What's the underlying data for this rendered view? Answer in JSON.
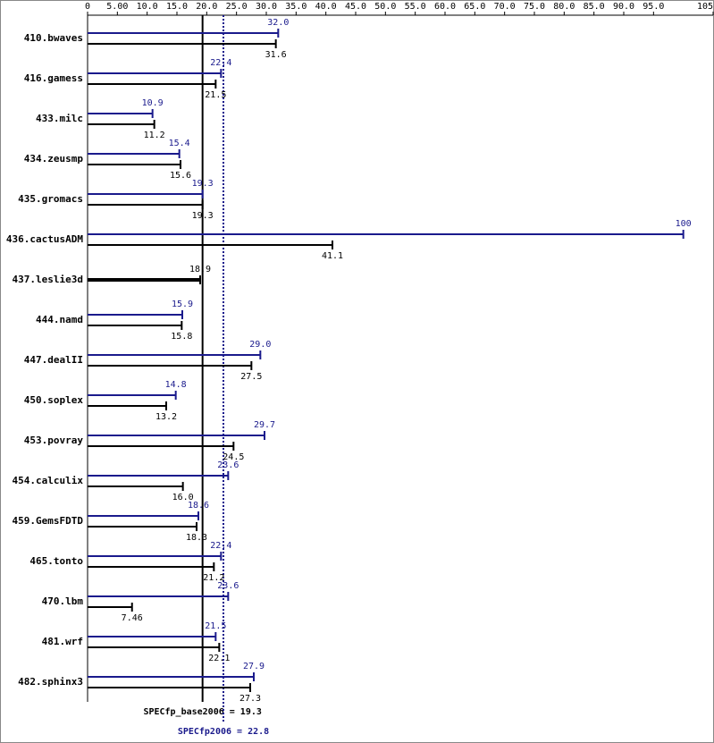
{
  "chart_data": {
    "type": "bar",
    "orientation": "horizontal",
    "categories": [
      "410.bwaves",
      "416.gamess",
      "433.milc",
      "434.zeusmp",
      "435.gromacs",
      "436.cactusADM",
      "437.leslie3d",
      "444.namd",
      "447.dealII",
      "450.soplex",
      "453.povray",
      "454.calculix",
      "459.GemsFDTD",
      "465.tonto",
      "470.lbm",
      "481.wrf",
      "482.sphinx3"
    ],
    "series": [
      {
        "color": "#1a1a8c",
        "values": [
          32.0,
          22.4,
          10.9,
          15.4,
          19.3,
          100,
          null,
          15.9,
          29.0,
          14.8,
          29.7,
          23.6,
          18.6,
          22.4,
          23.6,
          21.5,
          27.9
        ],
        "value_labels": [
          "32.0",
          "22.4",
          "10.9",
          "15.4",
          "19.3",
          "100",
          null,
          "15.9",
          "29.0",
          "14.8",
          "29.7",
          "23.6",
          "18.6",
          "22.4",
          "23.6",
          "21.5",
          "27.9"
        ]
      },
      {
        "color": "#000000",
        "values": [
          31.6,
          21.5,
          11.2,
          15.6,
          19.3,
          41.1,
          18.9,
          15.8,
          27.5,
          13.2,
          24.5,
          16.0,
          18.3,
          21.2,
          7.46,
          22.1,
          27.3
        ],
        "value_labels": [
          "31.6",
          "21.5",
          "11.2",
          "15.6",
          "19.3",
          "41.1",
          "18.9",
          "15.8",
          "27.5",
          "13.2",
          "24.5",
          "16.0",
          "18.3",
          "21.2",
          "7.46",
          "22.1",
          "27.3"
        ]
      }
    ],
    "xlim": [
      0,
      105
    ],
    "xticks": [
      0,
      {
        "value": 5,
        "label": "5.00"
      },
      {
        "value": 10,
        "label": "10.0"
      },
      {
        "value": 15,
        "label": "15.0"
      },
      {
        "value": 20,
        "label": "20.0"
      },
      {
        "value": 25,
        "label": "25.0"
      },
      {
        "value": 30,
        "label": "30.0"
      },
      {
        "value": 35,
        "label": "35.0"
      },
      {
        "value": 40,
        "label": "40.0"
      },
      {
        "value": 45,
        "label": "45.0"
      },
      {
        "value": 50,
        "label": "50.0"
      },
      {
        "value": 55,
        "label": "55.0"
      },
      {
        "value": 60,
        "label": "60.0"
      },
      {
        "value": 65,
        "label": "65.0"
      },
      {
        "value": 70,
        "label": "70.0"
      },
      {
        "value": 75,
        "label": "75.0"
      },
      {
        "value": 80,
        "label": "80.0"
      },
      {
        "value": 85,
        "label": "85.0"
      },
      {
        "value": 90,
        "label": "90.0"
      },
      {
        "value": 95,
        "label": "95.0"
      },
      105
    ],
    "reference_lines": [
      {
        "label": "SPECfp_base2006 = 19.3",
        "value": 19.3,
        "color": "#000000"
      },
      {
        "label": "SPECfp2006 = 22.8",
        "value": 22.8,
        "color": "#1a1a8c"
      }
    ]
  }
}
